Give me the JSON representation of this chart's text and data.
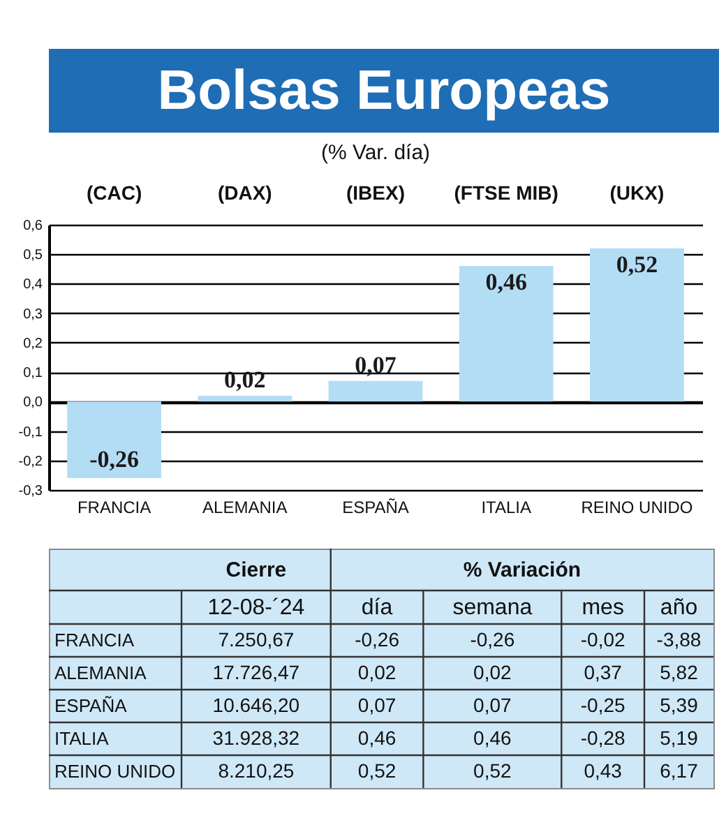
{
  "chart_data": [
    {
      "type": "bar",
      "title": "Bolsas Europeas",
      "subtitle": "(% Var. día)",
      "categories": [
        "FRANCIA",
        "ALEMANIA",
        "ESPAÑA",
        "ITALIA",
        "REINO UNIDO"
      ],
      "values": [
        -0.26,
        0.02,
        0.07,
        0.46,
        0.52
      ],
      "color": "#b3ddf5",
      "value_labels": [
        "-0,26",
        "0,02",
        "0,07",
        "0,46",
        "0,52"
      ],
      "ylim": [
        -0.3,
        0.6
      ],
      "yticks": [
        {
          "value": -0.3,
          "label": "-0,3"
        },
        {
          "value": -0.2,
          "label": "-0,2"
        },
        {
          "value": -0.1,
          "label": "-0,1"
        },
        {
          "value": 0,
          "label": "0,0"
        },
        {
          "value": 0.1,
          "label": "0,1"
        },
        {
          "value": 0.2,
          "label": "0,2"
        },
        {
          "value": 0.3,
          "label": "0,3"
        },
        {
          "value": 0.4,
          "label": "0,4"
        },
        {
          "value": 0.5,
          "label": "0,5"
        },
        {
          "value": 0.6,
          "label": "0,6"
        }
      ],
      "grid": "y",
      "annotations": [
        "(CAC)",
        "(DAX)",
        "(IBEX)",
        "(FTSE MIB)",
        "(UKX)"
      ]
    },
    {
      "type": "other",
      "categories": [
        "12-08-´24",
        "día",
        "semana",
        "mes",
        "año"
      ],
      "y_categories": [
        "FRANCIA",
        "ALEMANIA",
        "ESPAÑA",
        "ITALIA",
        "REINO UNIDO"
      ],
      "cells": [
        [
          "7.250,67",
          "-0,26",
          "-0,26",
          "-0,02",
          "-3,88"
        ],
        [
          "17.726,47",
          "0,02",
          "0,02",
          "0,37",
          "5,82"
        ],
        [
          "10.646,20",
          "0,07",
          "0,07",
          "-0,25",
          "5,39"
        ],
        [
          "31.928,32",
          "0,46",
          "0,46",
          "-0,28",
          "5,19"
        ],
        [
          "8.210,25",
          "0,52",
          "0,52",
          "0,43",
          "6,17"
        ]
      ],
      "annotations": [
        "Cierre",
        "% Variación"
      ]
    }
  ]
}
